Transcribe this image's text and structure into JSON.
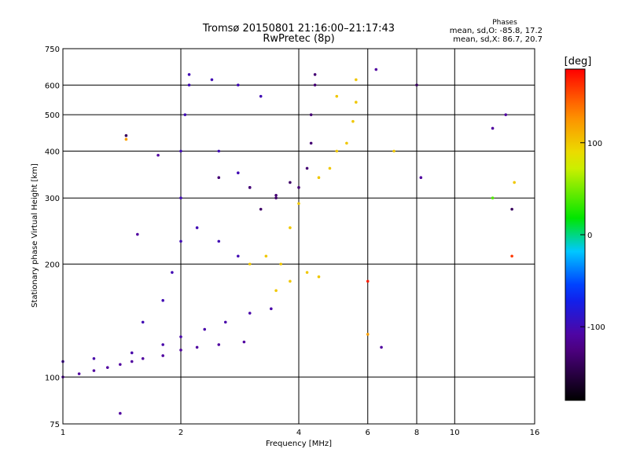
{
  "chart_data": {
    "type": "scatter",
    "title": "Tromsø 20150801 21:16:00–21:17:43",
    "subtitle": "RwPretec (8p)",
    "xlabel": "Frequency [MHz]",
    "ylabel": "Stationary phase Virtual Height [km]",
    "x_scale": "log",
    "y_scale": "log",
    "xlim": [
      1,
      16
    ],
    "ylim": [
      75,
      750
    ],
    "x_ticks": [
      1,
      2,
      4,
      6,
      8,
      10,
      16
    ],
    "y_ticks": [
      75,
      100,
      200,
      300,
      400,
      500,
      600,
      750
    ],
    "grid": true,
    "stats": {
      "heading": "Phases",
      "line_o": "mean, sd,O: -85.8, 17.2",
      "line_x": "mean, sd,X: 86.7, 20.7"
    },
    "colorbar": {
      "label": "[deg]",
      "range": [
        -180,
        180
      ],
      "ticks": [
        -100,
        0,
        100
      ],
      "palette": "rainbow"
    },
    "series": [
      {
        "values_description": "O-mode traces (phase ≈ -100 deg, blue)",
        "points": [
          {
            "x": 1.0,
            "y": 100,
            "phase": -110
          },
          {
            "x": 1.1,
            "y": 102,
            "phase": -110
          },
          {
            "x": 1.2,
            "y": 104,
            "phase": -110
          },
          {
            "x": 1.3,
            "y": 106,
            "phase": -110
          },
          {
            "x": 1.4,
            "y": 108,
            "phase": -110
          },
          {
            "x": 1.5,
            "y": 110,
            "phase": -110
          },
          {
            "x": 1.6,
            "y": 112,
            "phase": -110
          },
          {
            "x": 1.8,
            "y": 114,
            "phase": -110
          },
          {
            "x": 2.0,
            "y": 118,
            "phase": -110
          },
          {
            "x": 2.2,
            "y": 120,
            "phase": -110
          },
          {
            "x": 2.5,
            "y": 122,
            "phase": -110
          },
          {
            "x": 2.9,
            "y": 124,
            "phase": -110
          },
          {
            "x": 1.0,
            "y": 110,
            "phase": -105
          },
          {
            "x": 1.2,
            "y": 112,
            "phase": -105
          },
          {
            "x": 1.5,
            "y": 116,
            "phase": -105
          },
          {
            "x": 1.8,
            "y": 122,
            "phase": -105
          },
          {
            "x": 2.0,
            "y": 128,
            "phase": -105
          },
          {
            "x": 2.3,
            "y": 134,
            "phase": -105
          },
          {
            "x": 2.6,
            "y": 140,
            "phase": -105
          },
          {
            "x": 3.0,
            "y": 148,
            "phase": -105
          },
          {
            "x": 3.4,
            "y": 152,
            "phase": -105
          },
          {
            "x": 1.6,
            "y": 140,
            "phase": -100
          },
          {
            "x": 1.8,
            "y": 160,
            "phase": -100
          },
          {
            "x": 1.9,
            "y": 190,
            "phase": -100
          },
          {
            "x": 2.0,
            "y": 230,
            "phase": -100
          },
          {
            "x": 2.0,
            "y": 300,
            "phase": -100
          },
          {
            "x": 2.0,
            "y": 400,
            "phase": -100
          },
          {
            "x": 2.05,
            "y": 500,
            "phase": -100
          },
          {
            "x": 2.1,
            "y": 600,
            "phase": -100
          },
          {
            "x": 2.1,
            "y": 640,
            "phase": -100
          },
          {
            "x": 2.4,
            "y": 620,
            "phase": -100
          },
          {
            "x": 2.8,
            "y": 600,
            "phase": -100
          },
          {
            "x": 3.2,
            "y": 560,
            "phase": -100
          },
          {
            "x": 2.5,
            "y": 400,
            "phase": -100
          },
          {
            "x": 2.8,
            "y": 350,
            "phase": -100
          },
          {
            "x": 3.0,
            "y": 320,
            "phase": -100
          },
          {
            "x": 2.2,
            "y": 250,
            "phase": -100
          },
          {
            "x": 2.5,
            "y": 230,
            "phase": -100
          },
          {
            "x": 2.8,
            "y": 210,
            "phase": -100
          }
        ]
      },
      {
        "values_description": "F-layer cusp traces (phase ≈ -120 to -140 deg, dark blue)",
        "points": [
          {
            "x": 2.5,
            "y": 340,
            "phase": -130
          },
          {
            "x": 3.0,
            "y": 320,
            "phase": -130
          },
          {
            "x": 3.5,
            "y": 305,
            "phase": -130
          },
          {
            "x": 4.0,
            "y": 320,
            "phase": -130
          },
          {
            "x": 4.2,
            "y": 360,
            "phase": -130
          },
          {
            "x": 4.3,
            "y": 420,
            "phase": -130
          },
          {
            "x": 4.3,
            "y": 500,
            "phase": -130
          },
          {
            "x": 4.4,
            "y": 600,
            "phase": -130
          },
          {
            "x": 4.4,
            "y": 640,
            "phase": -130
          },
          {
            "x": 3.2,
            "y": 280,
            "phase": -135
          },
          {
            "x": 3.5,
            "y": 300,
            "phase": -135
          },
          {
            "x": 3.8,
            "y": 330,
            "phase": -135
          }
        ]
      },
      {
        "values_description": "X-mode traces (phase ≈ +100 deg, yellow)",
        "points": [
          {
            "x": 3.0,
            "y": 200,
            "phase": 100
          },
          {
            "x": 3.3,
            "y": 210,
            "phase": 100
          },
          {
            "x": 3.6,
            "y": 200,
            "phase": 100
          },
          {
            "x": 3.8,
            "y": 180,
            "phase": 100
          },
          {
            "x": 4.2,
            "y": 190,
            "phase": 100
          },
          {
            "x": 4.5,
            "y": 185,
            "phase": 100
          },
          {
            "x": 3.5,
            "y": 170,
            "phase": 100
          },
          {
            "x": 3.8,
            "y": 250,
            "phase": 100
          },
          {
            "x": 4.0,
            "y": 290,
            "phase": 100
          },
          {
            "x": 4.5,
            "y": 340,
            "phase": 100
          },
          {
            "x": 4.8,
            "y": 360,
            "phase": 100
          },
          {
            "x": 5.0,
            "y": 400,
            "phase": 100
          },
          {
            "x": 5.3,
            "y": 420,
            "phase": 100
          },
          {
            "x": 5.5,
            "y": 480,
            "phase": 100
          },
          {
            "x": 5.6,
            "y": 540,
            "phase": 100
          },
          {
            "x": 5.6,
            "y": 620,
            "phase": 100
          },
          {
            "x": 5.0,
            "y": 560,
            "phase": 100
          }
        ]
      },
      {
        "values_description": "Scattered isolated points",
        "points": [
          {
            "x": 1.45,
            "y": 440,
            "phase": -140
          },
          {
            "x": 1.45,
            "y": 430,
            "phase": 120
          },
          {
            "x": 1.4,
            "y": 80,
            "phase": -110
          },
          {
            "x": 1.55,
            "y": 240,
            "phase": -110
          },
          {
            "x": 1.75,
            "y": 390,
            "phase": -110
          },
          {
            "x": 6.0,
            "y": 180,
            "phase": 170
          },
          {
            "x": 6.0,
            "y": 130,
            "phase": 120
          },
          {
            "x": 6.5,
            "y": 120,
            "phase": -110
          },
          {
            "x": 8.0,
            "y": 600,
            "phase": -140
          },
          {
            "x": 8.2,
            "y": 340,
            "phase": -110
          },
          {
            "x": 12.5,
            "y": 460,
            "phase": -110
          },
          {
            "x": 12.5,
            "y": 300,
            "phase": 40
          },
          {
            "x": 13.5,
            "y": 500,
            "phase": -110
          },
          {
            "x": 14.0,
            "y": 210,
            "phase": 160
          },
          {
            "x": 14.0,
            "y": 280,
            "phase": -140
          },
          {
            "x": 14.2,
            "y": 330,
            "phase": 100
          },
          {
            "x": 6.3,
            "y": 660,
            "phase": -110
          },
          {
            "x": 7.0,
            "y": 400,
            "phase": 100
          }
        ]
      }
    ]
  }
}
